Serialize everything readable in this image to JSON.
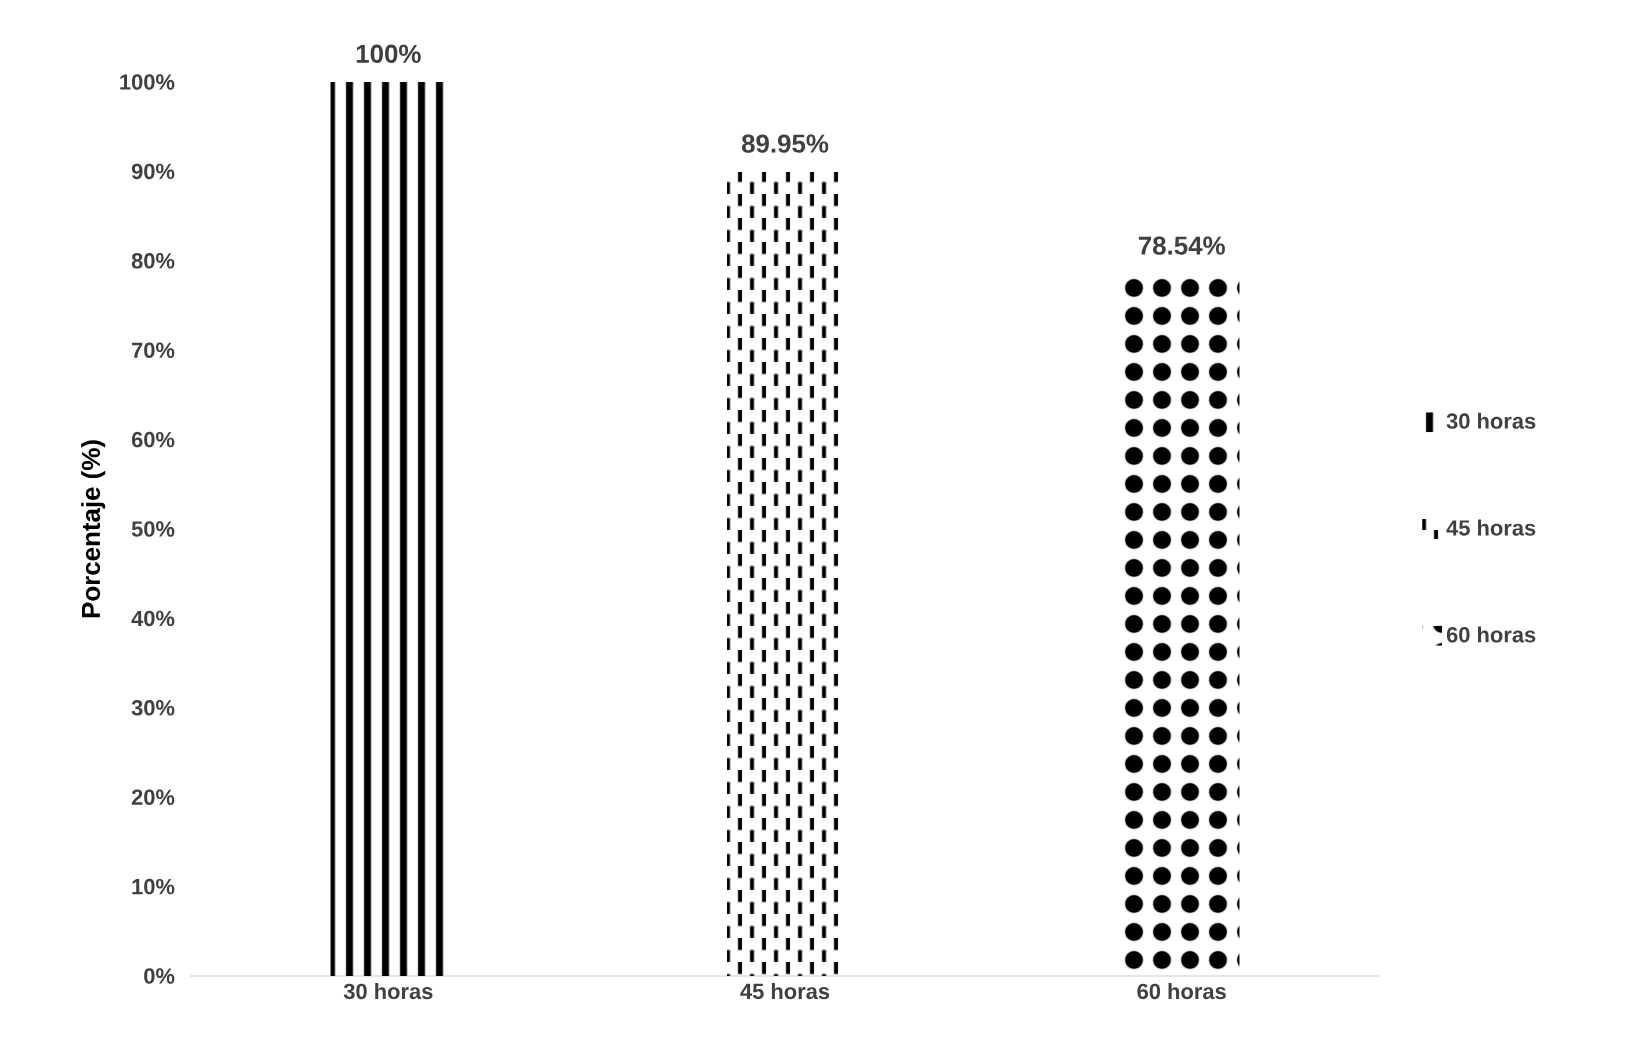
{
  "chart_data": {
    "type": "bar",
    "ylabel": "Porcentaje (%)",
    "categories": [
      "30 horas",
      "45 horas",
      "60 horas"
    ],
    "series": [
      {
        "name": "30 horas",
        "color": "#000000",
        "values": [
          100,
          null,
          null
        ],
        "value_labels": [
          "100%",
          null,
          null
        ]
      },
      {
        "name": "45 horas",
        "color": "#000000",
        "values": [
          null,
          89.95,
          null
        ],
        "value_labels": [
          null,
          "89.95%",
          null
        ]
      },
      {
        "name": "60 horas",
        "color": "#000000",
        "values": [
          null,
          null,
          78.54
        ],
        "value_labels": [
          null,
          null,
          "78.54%"
        ]
      }
    ],
    "ylim": [
      0,
      100
    ],
    "yticks": [
      {
        "value": 0,
        "label": "0%"
      },
      {
        "value": 10,
        "label": "10%"
      },
      {
        "value": 20,
        "label": "20%"
      },
      {
        "value": 30,
        "label": "30%"
      },
      {
        "value": 40,
        "label": "40%"
      },
      {
        "value": 50,
        "label": "50%"
      },
      {
        "value": 60,
        "label": "60%"
      },
      {
        "value": 70,
        "label": "70%"
      },
      {
        "value": 80,
        "label": "80%"
      },
      {
        "value": 90,
        "label": "90%"
      },
      {
        "value": 100,
        "label": "100%"
      }
    ],
    "legend": "right"
  }
}
